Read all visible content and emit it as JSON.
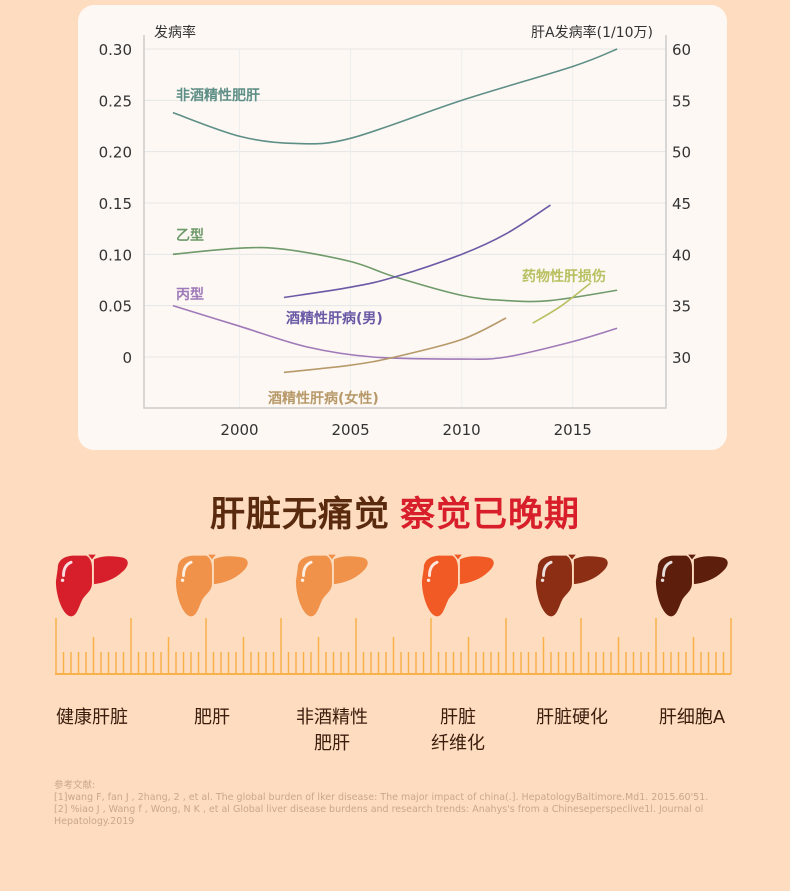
{
  "chart_data": {
    "type": "line",
    "left_axis_title": "发病率",
    "right_axis_title": "肝A发病率(1/10万)",
    "left_ticks": [
      "0.30",
      "0.25",
      "0.20",
      "0.15",
      "0.10",
      "0.05",
      "0"
    ],
    "left_tick_values": [
      0.3,
      0.25,
      0.2,
      0.15,
      0.1,
      0.05,
      0
    ],
    "right_ticks": [
      "60",
      "55",
      "50",
      "45",
      "40",
      "35",
      "30"
    ],
    "x_ticks": [
      "2000",
      "2005",
      "2010",
      "2015"
    ],
    "x_tick_values": [
      2000,
      2005,
      2010,
      2015
    ],
    "xlim": [
      1995.7,
      2019.2
    ],
    "ylim": [
      -0.05,
      0.3
    ],
    "grid": true,
    "series": [
      {
        "name": "非酒精性肥肝",
        "color": "#5e8f86",
        "x": [
          1997,
          2000,
          2002.5,
          2005,
          2010,
          2015,
          2017
        ],
        "y": [
          0.238,
          0.215,
          0.208,
          0.213,
          0.25,
          0.283,
          0.3
        ]
      },
      {
        "name": "乙型",
        "color": "#6f9a6a",
        "x": [
          1997,
          2000,
          2002,
          2005,
          2007,
          2010,
          2012,
          2014,
          2017
        ],
        "y": [
          0.1,
          0.106,
          0.105,
          0.093,
          0.078,
          0.06,
          0.055,
          0.055,
          0.065
        ]
      },
      {
        "name": "丙型",
        "color": "#a07ab8",
        "x": [
          1997,
          2000,
          2003,
          2006,
          2010,
          2012,
          2015,
          2017
        ],
        "y": [
          0.05,
          0.03,
          0.01,
          0.0,
          -0.002,
          0.0,
          0.015,
          0.028
        ]
      },
      {
        "name": "酒精性肝病(男)",
        "color": "#6a5aa6",
        "x": [
          2002,
          2005,
          2007,
          2010,
          2012,
          2014
        ],
        "y": [
          0.058,
          0.068,
          0.078,
          0.1,
          0.12,
          0.148
        ]
      },
      {
        "name": "酒精性肝病(女性)",
        "color": "#b89a6a",
        "x": [
          2002,
          2005,
          2007,
          2010,
          2012
        ],
        "y": [
          -0.015,
          -0.008,
          0.0,
          0.017,
          0.038
        ]
      },
      {
        "name": "药物性肝损伤",
        "color": "#b8c060",
        "x": [
          2013.2,
          2014.5,
          2015.8
        ],
        "y": [
          0.033,
          0.05,
          0.072
        ]
      }
    ]
  },
  "headline": {
    "part1": "肝脏无痛觉",
    "part2": "察觉已晚期"
  },
  "stages": [
    {
      "label": "健康肝脏",
      "color": "#d71f2c"
    },
    {
      "label": "肥肝",
      "color": "#f0924a"
    },
    {
      "label": "非酒精性\n肥肝",
      "color": "#f0924a"
    },
    {
      "label": "肝脏\n纤维化",
      "color": "#f15a24"
    },
    {
      "label": "肝脏硬化",
      "color": "#8b2e14"
    },
    {
      "label": "肝细胞A",
      "color": "#5e1e0c"
    }
  ],
  "ruler_color": "#f9b24a",
  "references": {
    "title": "参考文献:",
    "items": [
      "[1]wang F, fan J , 2hang, 2 , et al. The global burden of lker disease: The major impact of china(.]. HepatologyBaltimore.Md1. 2015.60'51.",
      "[2] %iao J , Wang f , Wong, N K , et al Global liver disease burdens and research trends: Anahys's from a Chineseperspeclive1l. Journal ol Hepatology.2019"
    ]
  }
}
